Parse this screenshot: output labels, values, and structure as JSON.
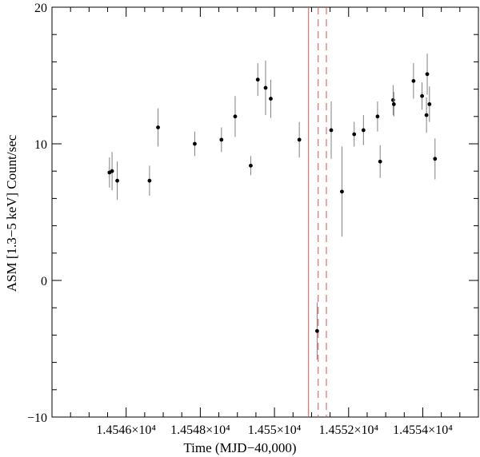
{
  "chart_data": {
    "type": "scatter",
    "xlabel": "Time (MJD−40,000)",
    "ylabel": "ASM [1.3−5 keV] Count/sec",
    "xlim": [
      14544.0,
      14555.5
    ],
    "ylim": [
      -10,
      20
    ],
    "x_ticks": [
      {
        "value": 14546,
        "label": "1.4546×10⁴"
      },
      {
        "value": 14548,
        "label": "1.4548×10⁴"
      },
      {
        "value": 14550,
        "label": "1.455×10⁴"
      },
      {
        "value": 14552,
        "label": "1.4552×10⁴"
      },
      {
        "value": 14554,
        "label": "1.4554×10⁴"
      }
    ],
    "y_ticks": [
      {
        "value": -10,
        "label": "−10"
      },
      {
        "value": 0,
        "label": "0"
      },
      {
        "value": 10,
        "label": "10"
      },
      {
        "value": 20,
        "label": "20"
      }
    ],
    "points": [
      {
        "x": 14545.55,
        "y": 7.9,
        "yerr": 1.1
      },
      {
        "x": 14545.62,
        "y": 8.0,
        "yerr": 1.4
      },
      {
        "x": 14545.76,
        "y": 7.3,
        "yerr": 1.4
      },
      {
        "x": 14546.63,
        "y": 7.3,
        "yerr": 1.1
      },
      {
        "x": 14546.86,
        "y": 11.2,
        "yerr": 1.4
      },
      {
        "x": 14547.85,
        "y": 10.0,
        "yerr": 0.9
      },
      {
        "x": 14548.57,
        "y": 10.3,
        "yerr": 0.9
      },
      {
        "x": 14548.94,
        "y": 12.0,
        "yerr": 1.5
      },
      {
        "x": 14549.36,
        "y": 8.4,
        "yerr": 0.7
      },
      {
        "x": 14549.55,
        "y": 14.7,
        "yerr": 1.2
      },
      {
        "x": 14549.76,
        "y": 14.1,
        "yerr": 2.0
      },
      {
        "x": 14549.9,
        "y": 13.3,
        "yerr": 1.4
      },
      {
        "x": 14550.67,
        "y": 10.3,
        "yerr": 1.3
      },
      {
        "x": 14551.15,
        "y": -3.7,
        "yerr": 2.1
      },
      {
        "x": 14551.53,
        "y": 11.0,
        "yerr": 2.1
      },
      {
        "x": 14551.82,
        "y": 6.5,
        "yerr": 3.3
      },
      {
        "x": 14552.15,
        "y": 10.7,
        "yerr": 0.9
      },
      {
        "x": 14552.4,
        "y": 11.0,
        "yerr": 1.1
      },
      {
        "x": 14552.78,
        "y": 12.0,
        "yerr": 1.1
      },
      {
        "x": 14552.85,
        "y": 8.7,
        "yerr": 1.2
      },
      {
        "x": 14553.2,
        "y": 13.2,
        "yerr": 1.1
      },
      {
        "x": 14553.22,
        "y": 12.9,
        "yerr": 0.9
      },
      {
        "x": 14553.75,
        "y": 14.6,
        "yerr": 1.3
      },
      {
        "x": 14553.98,
        "y": 13.5,
        "yerr": 1.0
      },
      {
        "x": 14554.1,
        "y": 12.1,
        "yerr": 1.3
      },
      {
        "x": 14554.12,
        "y": 15.1,
        "yerr": 1.5
      },
      {
        "x": 14554.18,
        "y": 12.9,
        "yerr": 1.3
      },
      {
        "x": 14554.33,
        "y": 8.9,
        "yerr": 1.5
      }
    ],
    "vertical_lines": [
      {
        "x": 14550.92,
        "style": "solid",
        "color": "#d9534f"
      },
      {
        "x": 14551.18,
        "style": "dashed",
        "color": "#d9534f"
      },
      {
        "x": 14551.4,
        "style": "dashed",
        "color": "#d9534f"
      }
    ],
    "colors": {
      "points": "#000000",
      "errorbars": "#808080",
      "markers": "#d9534f"
    },
    "grid": false,
    "legend": false
  }
}
